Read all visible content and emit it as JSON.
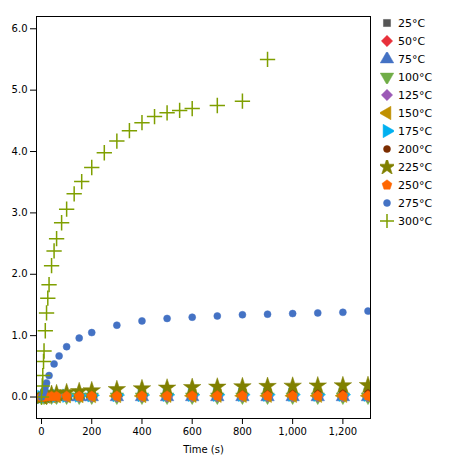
{
  "chart_data": {
    "type": "scatter",
    "xlabel": "Time (s)",
    "xlim": [
      -20,
      1310
    ],
    "ylim": [
      -0.35,
      6.2
    ],
    "xticks": [
      0,
      200,
      400,
      600,
      800,
      1000,
      1200
    ],
    "yticks": [
      0,
      1,
      2,
      3,
      4,
      5,
      6
    ],
    "grid": false,
    "legend": "right",
    "series": [
      {
        "name": "25°C",
        "marker": "square",
        "color": "#555555",
        "x": [
          0,
          10,
          20,
          40,
          60,
          100,
          150,
          200,
          300,
          400,
          500,
          600,
          700,
          800,
          900,
          1000,
          1100,
          1200,
          1300
        ],
        "values": [
          0,
          0.001,
          0.001,
          0.001,
          0.001,
          0.001,
          0.001,
          0.001,
          0.001,
          0.001,
          0.001,
          0.001,
          0.001,
          0.001,
          0.001,
          0.001,
          0.001,
          0.001,
          0.001
        ]
      },
      {
        "name": "50°C",
        "marker": "diamond",
        "color": "#e8303a",
        "x": [
          0,
          10,
          20,
          40,
          60,
          100,
          150,
          200,
          300,
          400,
          500,
          600,
          700,
          800,
          900,
          1000,
          1100,
          1200,
          1300
        ],
        "values": [
          0,
          0.002,
          0.002,
          0.002,
          0.002,
          0.002,
          0.002,
          0.002,
          0.002,
          0.002,
          0.002,
          0.002,
          0.002,
          0.002,
          0.002,
          0.002,
          0.002,
          0.002,
          0.002
        ]
      },
      {
        "name": "75°C",
        "marker": "triangle-up",
        "color": "#4472c4",
        "x": [
          0,
          10,
          20,
          40,
          60,
          100,
          150,
          200,
          300,
          400,
          500,
          600,
          700,
          800,
          900,
          1000,
          1100,
          1200,
          1300
        ],
        "values": [
          0,
          0.002,
          0.002,
          0.003,
          0.003,
          0.003,
          0.003,
          0.003,
          0.003,
          0.003,
          0.003,
          0.003,
          0.003,
          0.003,
          0.003,
          0.003,
          0.003,
          0.003,
          0.003
        ]
      },
      {
        "name": "100°C",
        "marker": "triangle-down",
        "color": "#70ad47",
        "x": [
          0,
          10,
          20,
          40,
          60,
          100,
          150,
          200,
          300,
          400,
          500,
          600,
          700,
          800,
          900,
          1000,
          1100,
          1200,
          1300
        ],
        "values": [
          0,
          0.002,
          0.002,
          0.003,
          0.003,
          0.003,
          0.003,
          0.003,
          0.003,
          0.003,
          0.003,
          0.003,
          0.003,
          0.003,
          0.003,
          0.003,
          0.003,
          0.003,
          0.003
        ]
      },
      {
        "name": "125°C",
        "marker": "diamond",
        "color": "#9b59b6",
        "x": [
          0,
          10,
          20,
          40,
          60,
          100,
          150,
          200,
          300,
          400,
          500,
          600,
          700,
          800,
          900,
          1000,
          1100,
          1200,
          1300
        ],
        "values": [
          0,
          0.003,
          0.004,
          0.005,
          0.005,
          0.006,
          0.007,
          0.007,
          0.008,
          0.008,
          0.008,
          0.009,
          0.009,
          0.009,
          0.009,
          0.009,
          0.009,
          0.01,
          0.01
        ]
      },
      {
        "name": "150°C",
        "marker": "triangle-left",
        "color": "#c09000",
        "x": [
          0,
          10,
          20,
          40,
          60,
          100,
          150,
          200,
          300,
          400,
          500,
          600,
          700,
          800,
          900,
          1000,
          1100,
          1200,
          1300
        ],
        "values": [
          0,
          0.006,
          0.008,
          0.01,
          0.012,
          0.013,
          0.015,
          0.016,
          0.017,
          0.018,
          0.019,
          0.02,
          0.02,
          0.02,
          0.02,
          0.02,
          0.02,
          0.02,
          0.02
        ]
      },
      {
        "name": "175°C",
        "marker": "triangle-right",
        "color": "#00b0f0",
        "x": [
          0,
          10,
          20,
          40,
          60,
          100,
          150,
          200,
          300,
          400,
          500,
          600,
          700,
          800,
          900,
          1000,
          1100,
          1200,
          1300
        ],
        "values": [
          0,
          0.009,
          0.013,
          0.017,
          0.019,
          0.022,
          0.025,
          0.028,
          0.031,
          0.033,
          0.035,
          0.036,
          0.037,
          0.037,
          0.038,
          0.038,
          0.038,
          0.038,
          0.038
        ]
      },
      {
        "name": "200°C",
        "marker": "circle",
        "color": "#7b2d00",
        "x": [
          0,
          10,
          20,
          40,
          60,
          100,
          150,
          200,
          300,
          400,
          500,
          600,
          700,
          800,
          900,
          1000,
          1100,
          1200,
          1300
        ],
        "values": [
          0,
          0.014,
          0.02,
          0.028,
          0.034,
          0.042,
          0.05,
          0.056,
          0.064,
          0.069,
          0.073,
          0.076,
          0.078,
          0.08,
          0.081,
          0.082,
          0.083,
          0.084,
          0.085
        ]
      },
      {
        "name": "225°C",
        "marker": "star",
        "color": "#808000",
        "x": [
          0,
          10,
          20,
          40,
          60,
          100,
          150,
          200,
          300,
          400,
          500,
          600,
          700,
          800,
          900,
          1000,
          1100,
          1200,
          1300
        ],
        "values": [
          0,
          0.02,
          0.031,
          0.046,
          0.057,
          0.073,
          0.091,
          0.105,
          0.124,
          0.138,
          0.149,
          0.158,
          0.165,
          0.171,
          0.176,
          0.18,
          0.184,
          0.187,
          0.19
        ]
      },
      {
        "name": "250°C",
        "marker": "pentagon",
        "color": "#ff6600",
        "x": [
          0,
          10,
          20,
          40,
          60,
          100,
          150,
          200,
          300,
          400,
          500,
          600,
          700,
          800,
          900,
          1000,
          1100,
          1200,
          1300
        ],
        "values": [
          0,
          0.005,
          0.007,
          0.009,
          0.01,
          0.012,
          0.013,
          0.014,
          0.016,
          0.017,
          0.018,
          0.019,
          0.02,
          0.02,
          0.02,
          0.02,
          0.02,
          0.02,
          0.02
        ]
      },
      {
        "name": "275°C",
        "marker": "circle",
        "color": "#4472c4",
        "x": [
          0,
          5,
          10,
          15,
          20,
          30,
          50,
          70,
          100,
          150,
          200,
          300,
          400,
          500,
          600,
          700,
          800,
          900,
          1000,
          1100,
          1200,
          1300
        ],
        "values": [
          0,
          0.04,
          0.1,
          0.17,
          0.23,
          0.35,
          0.54,
          0.67,
          0.82,
          0.96,
          1.05,
          1.17,
          1.24,
          1.28,
          1.3,
          1.32,
          1.34,
          1.35,
          1.36,
          1.37,
          1.38,
          1.4
        ]
      },
      {
        "name": "300°C",
        "marker": "plus",
        "color": "#7f9f00",
        "x": [
          0,
          3,
          5,
          8,
          10,
          15,
          20,
          25,
          30,
          40,
          50,
          60,
          80,
          100,
          130,
          160,
          200,
          250,
          300,
          350,
          400,
          450,
          500,
          550,
          600,
          700,
          800,
          900
        ],
        "values": [
          0,
          0.18,
          0.35,
          0.58,
          0.75,
          1.08,
          1.37,
          1.61,
          1.83,
          2.14,
          2.38,
          2.58,
          2.84,
          3.06,
          3.31,
          3.51,
          3.74,
          3.98,
          4.17,
          4.34,
          4.47,
          4.57,
          4.63,
          4.67,
          4.7,
          4.75,
          4.82,
          5.5
        ]
      }
    ]
  }
}
